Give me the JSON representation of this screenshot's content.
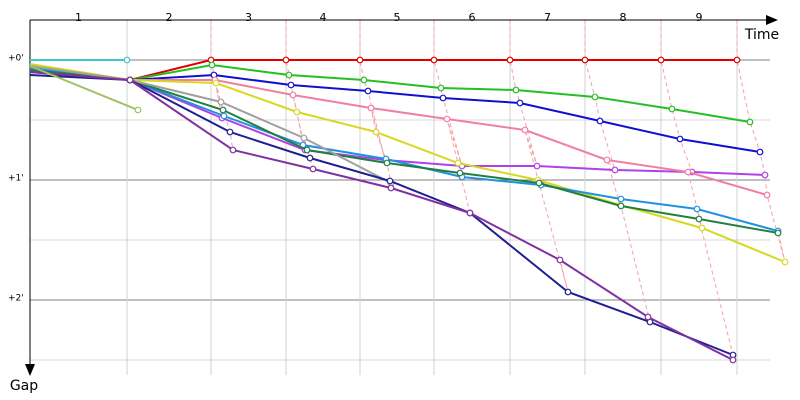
{
  "chart_data": {
    "type": "line",
    "x_label": "Time",
    "y_label": "Gap",
    "xlim": [
      0,
      770
    ],
    "ylim": [
      -20,
      157.5
    ],
    "y_reversed": true,
    "yticks": [
      {
        "value": 0,
        "label": "+0'"
      },
      {
        "value": 60,
        "label": "+1'"
      },
      {
        "value": 120,
        "label": "+2'"
      }
    ],
    "laps": [
      "1",
      "2",
      "3",
      "4",
      "5",
      "6",
      "7",
      "8",
      "9"
    ],
    "lap_ends": [
      97,
      181,
      256,
      330,
      404,
      480,
      555,
      631,
      707
    ],
    "lap_line_color": "#f4a0a8",
    "series": [
      {
        "color": "#e00000",
        "x": [
          0,
          100,
          181,
          256,
          330,
          404,
          480,
          555,
          631,
          707
        ],
        "values": [
          5,
          10,
          0,
          0,
          0,
          0,
          0,
          0,
          0,
          0
        ]
      },
      {
        "color": "#22c022",
        "x": [
          0,
          100,
          182,
          259,
          334,
          411,
          486,
          565,
          642,
          720
        ],
        "values": [
          4,
          10,
          2.5,
          7.5,
          10,
          14,
          15,
          18.5,
          24.5,
          31
        ]
      },
      {
        "color": "#1010d0",
        "x": [
          0,
          100,
          184,
          261,
          338,
          413,
          490,
          570,
          650,
          730
        ],
        "values": [
          6,
          10,
          7.5,
          12.5,
          15.5,
          19,
          21.5,
          30.5,
          39.5,
          46
        ]
      },
      {
        "color": "#b040e8",
        "x": [
          0,
          100,
          192,
          275,
          355,
          432,
          507,
          585,
          662,
          735
        ],
        "values": [
          2.5,
          10,
          29,
          45,
          50,
          53,
          53,
          55,
          56,
          57.5
        ]
      },
      {
        "color": "#f080a0",
        "x": [
          0,
          100,
          185,
          263,
          341,
          417,
          495,
          577,
          658,
          737
        ],
        "values": [
          3,
          10,
          10,
          17.5,
          24,
          29.5,
          35,
          50,
          56,
          67.5
        ]
      },
      {
        "color": "#d8d820",
        "x": [
          0,
          100,
          186,
          267,
          346,
          428,
          508,
          590,
          672,
          755
        ],
        "values": [
          2,
          10,
          11.5,
          26,
          36,
          51.5,
          60,
          72.5,
          84,
          101
        ]
      },
      {
        "color": "#2090e0",
        "x": [
          0,
          100,
          194,
          273,
          356,
          432,
          511,
          591,
          667,
          748
        ],
        "values": [
          4,
          10,
          28,
          42.5,
          49.5,
          58.5,
          62.5,
          69.5,
          74.5,
          85.5
        ]
      },
      {
        "color": "#208040",
        "x": [
          0,
          100,
          193,
          277,
          357,
          430,
          509,
          591,
          669,
          748
        ],
        "values": [
          5,
          10,
          25,
          45,
          51.5,
          56.5,
          61.5,
          73,
          79.5,
          86.5
        ]
      },
      {
        "color": "#a0a0a0",
        "x": [
          0,
          100,
          191,
          274,
          361
        ],
        "values": [
          3,
          10,
          21,
          39,
          61.5
        ]
      },
      {
        "color": "#202090",
        "x": [
          0,
          100,
          200,
          280,
          360,
          440,
          538,
          620,
          703
        ],
        "values": [
          7.5,
          10,
          36,
          49,
          60.5,
          76.5,
          116,
          131,
          147.5
        ]
      },
      {
        "color": "#8030a0",
        "x": [
          0,
          100,
          203,
          283,
          361,
          440,
          530,
          618,
          703
        ],
        "values": [
          6,
          10,
          45,
          54.5,
          64,
          76.5,
          100,
          128.5,
          150
        ]
      },
      {
        "color": "#40c8d0",
        "x": [
          0,
          97
        ],
        "values": [
          0,
          0
        ]
      },
      {
        "color": "#a0c060",
        "x": [
          0,
          108
        ],
        "values": [
          3,
          25
        ]
      }
    ]
  }
}
